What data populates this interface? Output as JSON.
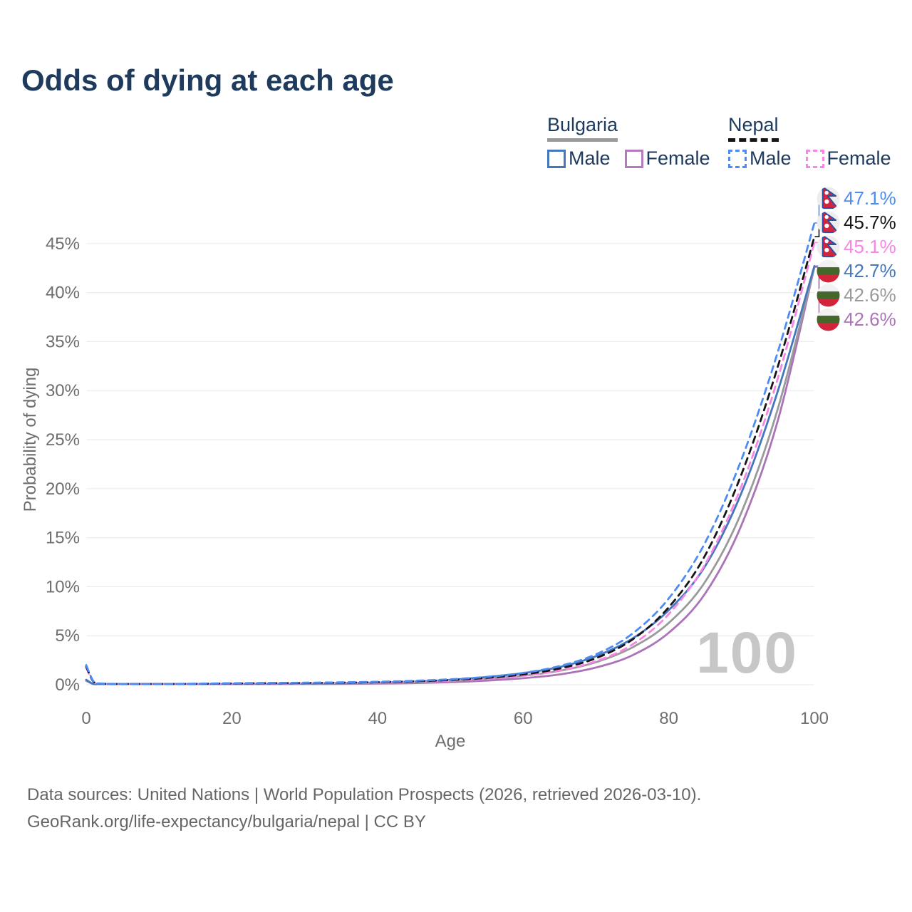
{
  "title": "Odds of dying at each age",
  "legend": {
    "groups": [
      {
        "country": "Bulgaria",
        "line_style": "solid",
        "line_color": "#9a9a9a",
        "items": [
          {
            "label": "Male",
            "color": "#4577bd"
          },
          {
            "label": "Female",
            "color": "#b579bd"
          }
        ]
      },
      {
        "country": "Nepal",
        "line_style": "dashed",
        "line_color": "#161616",
        "items": [
          {
            "label": "Male",
            "color": "#4d8cf5"
          },
          {
            "label": "Female",
            "color": "#fa86e4"
          }
        ]
      }
    ]
  },
  "chart_data": {
    "type": "line",
    "title": "Odds of dying at each age",
    "xlabel": "Age",
    "ylabel": "Probability of dying",
    "x_ticks": [
      "0",
      "20",
      "40",
      "60",
      "80",
      "100"
    ],
    "y_ticks": [
      "0%",
      "5%",
      "10%",
      "15%",
      "20%",
      "25%",
      "30%",
      "35%",
      "40%",
      "45%"
    ],
    "xlim": [
      0,
      100
    ],
    "ylim_pct": [
      0,
      48
    ],
    "grid": "horizontal",
    "legend_position": "top-right",
    "age_indicator": "100",
    "values_unit": "percent",
    "ages": [
      0,
      1,
      2,
      5,
      10,
      15,
      20,
      25,
      30,
      35,
      40,
      45,
      50,
      55,
      60,
      65,
      70,
      75,
      80,
      85,
      90,
      95,
      100
    ],
    "series": [
      {
        "id": "nepal-male",
        "name": "Nepal — Male",
        "flag": "nepal",
        "dashed": true,
        "color": "#4d8cf5",
        "end_label": "47.1%",
        "values": [
          2.0,
          0.35,
          0.12,
          0.08,
          0.06,
          0.1,
          0.15,
          0.18,
          0.2,
          0.24,
          0.3,
          0.4,
          0.55,
          0.8,
          1.2,
          1.9,
          3.1,
          5.2,
          8.8,
          14.5,
          23.0,
          34.0,
          47.1
        ]
      },
      {
        "id": "nepal",
        "name": "Nepal",
        "flag": "nepal",
        "dashed": true,
        "color": "#161616",
        "end_label": "45.7%",
        "values": [
          1.85,
          0.32,
          0.11,
          0.07,
          0.055,
          0.09,
          0.13,
          0.16,
          0.18,
          0.21,
          0.26,
          0.35,
          0.48,
          0.7,
          1.05,
          1.65,
          2.7,
          4.6,
          7.9,
          13.2,
          21.5,
          32.5,
          45.7
        ]
      },
      {
        "id": "nepal-female",
        "name": "Nepal — Female",
        "flag": "nepal",
        "dashed": true,
        "color": "#fa86e4",
        "end_label": "45.1%",
        "values": [
          1.7,
          0.3,
          0.1,
          0.06,
          0.05,
          0.08,
          0.11,
          0.13,
          0.15,
          0.18,
          0.22,
          0.3,
          0.42,
          0.6,
          0.92,
          1.45,
          2.4,
          4.1,
          7.2,
          12.3,
          20.3,
          31.3,
          45.1
        ]
      },
      {
        "id": "bulgaria-male",
        "name": "Bulgaria — Male",
        "flag": "bulgaria",
        "dashed": false,
        "color": "#4577bd",
        "end_label": "42.7%",
        "values": [
          0.5,
          0.04,
          0.02,
          0.015,
          0.02,
          0.05,
          0.08,
          0.1,
          0.12,
          0.16,
          0.22,
          0.32,
          0.5,
          0.78,
          1.18,
          1.8,
          2.9,
          4.7,
          7.6,
          12.1,
          19.6,
          30.0,
          42.7
        ]
      },
      {
        "id": "bulgaria",
        "name": "Bulgaria",
        "flag": "bulgaria",
        "dashed": false,
        "color": "#9a9a9a",
        "end_label": "42.6%",
        "values": [
          0.45,
          0.035,
          0.018,
          0.013,
          0.017,
          0.04,
          0.06,
          0.08,
          0.1,
          0.13,
          0.17,
          0.25,
          0.38,
          0.6,
          0.92,
          1.42,
          2.3,
          3.8,
          6.3,
          10.5,
          17.6,
          28.2,
          42.6
        ]
      },
      {
        "id": "bulgaria-female",
        "name": "Bulgaria — Female",
        "flag": "bulgaria",
        "dashed": false,
        "color": "#ab74b8",
        "end_label": "42.6%",
        "values": [
          0.4,
          0.03,
          0.015,
          0.012,
          0.015,
          0.03,
          0.045,
          0.06,
          0.07,
          0.09,
          0.12,
          0.17,
          0.26,
          0.42,
          0.66,
          1.05,
          1.75,
          3.0,
          5.3,
          9.3,
          16.3,
          27.0,
          42.6
        ]
      }
    ]
  },
  "footer": {
    "line1": "Data sources: United Nations | World Population Prospects (2026, retrieved 2026-03-10).",
    "line2": "GeoRank.org/life-expectancy/bulgaria/nepal | CC BY"
  }
}
